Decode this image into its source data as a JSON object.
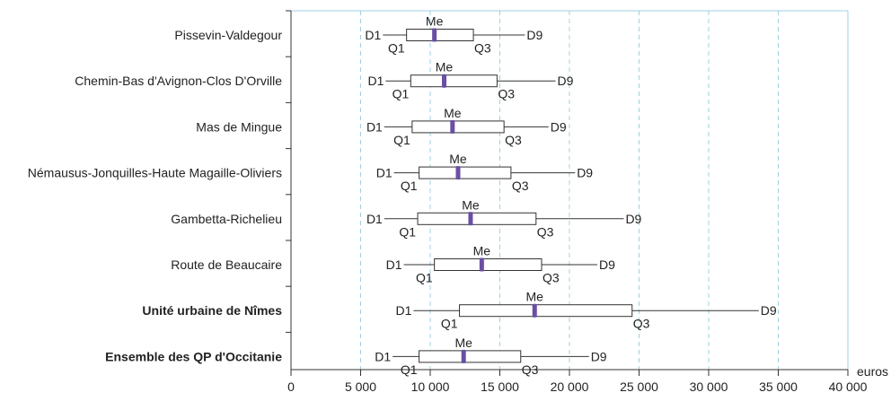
{
  "chart_data": {
    "type": "boxplot",
    "unit_label": "euros",
    "xlim": [
      0,
      40000
    ],
    "x_ticks": [
      0,
      5000,
      10000,
      15000,
      20000,
      25000,
      30000,
      35000,
      40000
    ],
    "x_tick_labels": [
      "0",
      "5 000",
      "10 000",
      "15 000",
      "20 000",
      "25 000",
      "30 000",
      "35 000",
      "40 000"
    ],
    "grid": "vertical dashed",
    "marker_labels": {
      "d1": "D1",
      "q1": "Q1",
      "median": "Me",
      "q3": "Q3",
      "d9": "D9"
    },
    "categories": [
      {
        "name": "Pissevin-Valdegour",
        "bold": false,
        "d1": 6600,
        "q1": 8300,
        "median": 10300,
        "q3": 13100,
        "d9": 16800
      },
      {
        "name": "Chemin-Bas d'Avignon-Clos D'Orville",
        "bold": false,
        "d1": 6800,
        "q1": 8600,
        "median": 11000,
        "q3": 14800,
        "d9": 19000
      },
      {
        "name": "Mas de Mingue",
        "bold": false,
        "d1": 6700,
        "q1": 8700,
        "median": 11600,
        "q3": 15300,
        "d9": 18500
      },
      {
        "name": "Némausus-Jonquilles-Haute Magaille-Oliviers",
        "bold": false,
        "d1": 7400,
        "q1": 9200,
        "median": 12000,
        "q3": 15800,
        "d9": 20400
      },
      {
        "name": "Gambetta-Richelieu",
        "bold": false,
        "d1": 6700,
        "q1": 9100,
        "median": 12900,
        "q3": 17600,
        "d9": 23900
      },
      {
        "name": "Route de Beaucaire",
        "bold": false,
        "d1": 8100,
        "q1": 10300,
        "median": 13700,
        "q3": 18000,
        "d9": 22000
      },
      {
        "name": "Unité urbaine de Nîmes",
        "bold": true,
        "d1": 8800,
        "q1": 12100,
        "median": 17500,
        "q3": 24500,
        "d9": 33600
      },
      {
        "name": "Ensemble des QP d'Occitanie",
        "bold": true,
        "d1": 7300,
        "q1": 9200,
        "median": 12400,
        "q3": 16500,
        "d9": 21400
      }
    ],
    "colors": {
      "median": "#6a4fa3",
      "grid": "#9fd0e2",
      "frame": "#9fd0e2",
      "box": "#333333",
      "text": "#222222"
    }
  }
}
